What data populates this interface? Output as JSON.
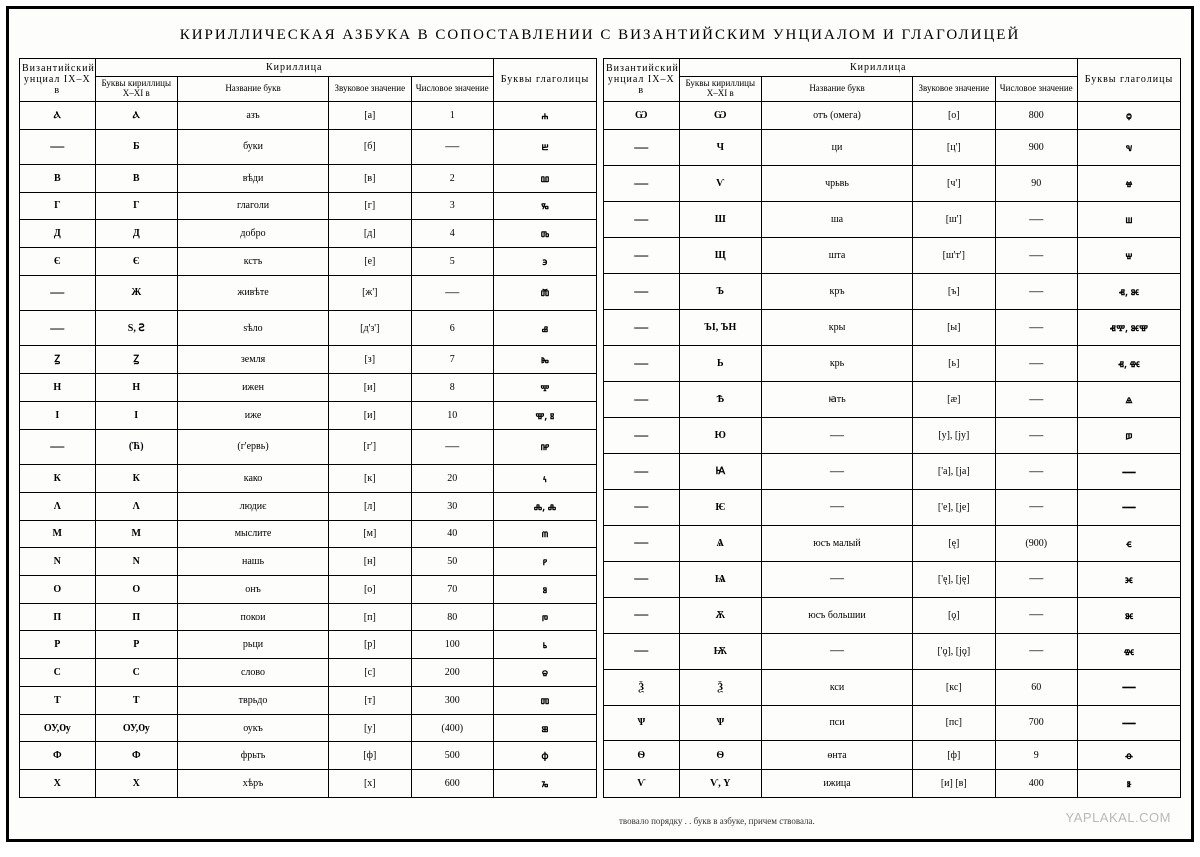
{
  "title": "КИРИЛЛИЧЕСКАЯ АЗБУКА В СОПОСТАВЛЕНИИ С ВИЗАНТИЙСКИМ УНЦИАЛОМ И ГЛАГОЛИЦЕЙ",
  "columns": {
    "byzantine": "Византийский унциал IX–X в",
    "cyrillic_group": "Кириллица",
    "cyr_letters": "Буквы кириллицы X–XI в",
    "letter_name": "Название букв",
    "phonetic": "Звуковое значение",
    "numeric": "Числовое значение",
    "glagolitic": "Буквы глаголицы"
  },
  "left_rows": [
    {
      "byz": "Ⲁ",
      "cyr": "Ⲁ",
      "name": "азъ",
      "phon": "[а]",
      "num": "1",
      "gl": "ⰰ"
    },
    {
      "byz": "—",
      "cyr": "Б",
      "name": "буки",
      "phon": "[б]",
      "num": "—",
      "gl": "ⰱ"
    },
    {
      "byz": "В",
      "cyr": "В",
      "name": "вѣди",
      "phon": "[в]",
      "num": "2",
      "gl": "ⰲ"
    },
    {
      "byz": "Г",
      "cyr": "Г",
      "name": "глаголи",
      "phon": "[г]",
      "num": "3",
      "gl": "ⰳ"
    },
    {
      "byz": "Д",
      "cyr": "Д",
      "name": "добро",
      "phon": "[д]",
      "num": "4",
      "gl": "ⰴ"
    },
    {
      "byz": "Є",
      "cyr": "Є",
      "name": "кстъ",
      "phon": "[е]",
      "num": "5",
      "gl": "ⰵ"
    },
    {
      "byz": "—",
      "cyr": "Ж",
      "name": "живѣте",
      "phon": "[ж']",
      "num": "—",
      "gl": "ⰶ"
    },
    {
      "byz": "—",
      "cyr": "Ѕ, Ꙅ",
      "name": "ѕѣло",
      "phon": "[д'з']",
      "num": "6",
      "gl": "ⰷ"
    },
    {
      "byz": "Ꙁ",
      "cyr": "Ꙁ",
      "name": "земля",
      "phon": "[з]",
      "num": "7",
      "gl": "ⰸ"
    },
    {
      "byz": "Н",
      "cyr": "Н",
      "name": "ижен",
      "phon": "[и]",
      "num": "8",
      "gl": "ⰹ"
    },
    {
      "byz": "І",
      "cyr": "І",
      "name": "иже",
      "phon": "[и]",
      "num": "10",
      "gl": "ⰺ, ⰻ"
    },
    {
      "byz": "—",
      "cyr": "(Ћ)",
      "name": "(г'ервь)",
      "phon": "[г']",
      "num": "—",
      "gl": "ⰼ"
    },
    {
      "byz": "К",
      "cyr": "К",
      "name": "како",
      "phon": "[к]",
      "num": "20",
      "gl": "ⰽ"
    },
    {
      "byz": "Λ",
      "cyr": "Λ",
      "name": "людиє",
      "phon": "[л]",
      "num": "30",
      "gl": "ⰾ, ⰾ"
    },
    {
      "byz": "М",
      "cyr": "М",
      "name": "мыслите",
      "phon": "[м]",
      "num": "40",
      "gl": "ⰿ"
    },
    {
      "byz": "N",
      "cyr": "N",
      "name": "нашь",
      "phon": "[н]",
      "num": "50",
      "gl": "ⱀ"
    },
    {
      "byz": "О",
      "cyr": "О",
      "name": "онъ",
      "phon": "[о]",
      "num": "70",
      "gl": "ⱁ"
    },
    {
      "byz": "П",
      "cyr": "П",
      "name": "покои",
      "phon": "[п]",
      "num": "80",
      "gl": "ⱂ"
    },
    {
      "byz": "Р",
      "cyr": "Р",
      "name": "рьци",
      "phon": "[р]",
      "num": "100",
      "gl": "ⱃ"
    },
    {
      "byz": "С",
      "cyr": "С",
      "name": "слово",
      "phon": "[с]",
      "num": "200",
      "gl": "ⱄ"
    },
    {
      "byz": "Т",
      "cyr": "Т",
      "name": "тврьдо",
      "phon": "[т]",
      "num": "300",
      "gl": "ⱅ"
    },
    {
      "byz": "ОУ,Ѹ",
      "cyr": "ОУ,Ѹ",
      "name": "оукъ",
      "phon": "[у]",
      "num": "(400)",
      "gl": "ⱆ"
    },
    {
      "byz": "Ф",
      "cyr": "Ф",
      "name": "фрьть",
      "phon": "[ф]",
      "num": "500",
      "gl": "ⱇ"
    },
    {
      "byz": "Х",
      "cyr": "Х",
      "name": "хѣръ",
      "phon": "[х]",
      "num": "600",
      "gl": "ⱈ"
    }
  ],
  "right_rows": [
    {
      "byz": "Ѡ",
      "cyr": "Ѡ",
      "name": "отъ (омега)",
      "phon": "[о]",
      "num": "800",
      "gl": "ⱉ"
    },
    {
      "byz": "—",
      "cyr": "Ч",
      "name": "ци",
      "phon": "[ц']",
      "num": "900",
      "gl": "ⱌ"
    },
    {
      "byz": "—",
      "cyr": "Ѵ",
      "name": "чрьвь",
      "phon": "[ч']",
      "num": "90",
      "gl": "ⱍ"
    },
    {
      "byz": "—",
      "cyr": "Ш",
      "name": "ша",
      "phon": "[ш']",
      "num": "—",
      "gl": "ⱎ"
    },
    {
      "byz": "—",
      "cyr": "Щ",
      "name": "шта",
      "phon": "[ш'т']",
      "num": "—",
      "gl": "ⱋ"
    },
    {
      "byz": "—",
      "cyr": "Ъ",
      "name": "кръ",
      "phon": "[ъ]",
      "num": "—",
      "gl": "ⱏ, ⱘ"
    },
    {
      "byz": "—",
      "cyr": "ЪІ, ЪН",
      "name": "кры",
      "phon": "[ы]",
      "num": "—",
      "gl": "ⱏⰹ, ⱘⰺ"
    },
    {
      "byz": "—",
      "cyr": "Ь",
      "name": "крь",
      "phon": "[ь]",
      "num": "—",
      "gl": "ⱐ, ⱙ"
    },
    {
      "byz": "—",
      "cyr": "Ѣ",
      "name": "ꙗть",
      "phon": "[æ]",
      "num": "—",
      "gl": "ⱑ"
    },
    {
      "byz": "—",
      "cyr": "Ю",
      "name": "—",
      "phon": "[у], [jу]",
      "num": "—",
      "gl": "ⱓ"
    },
    {
      "byz": "—",
      "cyr": "Ꙗ",
      "name": "—",
      "phon": "['а], [jа]",
      "num": "—",
      "gl": "—"
    },
    {
      "byz": "—",
      "cyr": "Ѥ",
      "name": "—",
      "phon": "['е], [jе]",
      "num": "—",
      "gl": "—"
    },
    {
      "byz": "—",
      "cyr": "Ѧ",
      "name": "юсъ малый",
      "phon": "[ę]",
      "num": "(900)",
      "gl": "ⱔ"
    },
    {
      "byz": "—",
      "cyr": "Ѩ",
      "name": "—",
      "phon": "['ę], [ję]",
      "num": "—",
      "gl": "ⱗ"
    },
    {
      "byz": "—",
      "cyr": "Ѫ",
      "name": "юсъ большии",
      "phon": "[ǫ]",
      "num": "—",
      "gl": "ⱘ"
    },
    {
      "byz": "—",
      "cyr": "Ѭ",
      "name": "—",
      "phon": "['ǫ], [jǫ]",
      "num": "—",
      "gl": "ⱙ"
    },
    {
      "byz": "Ѯ",
      "cyr": "Ѯ",
      "name": "кси",
      "phon": "[кс]",
      "num": "60",
      "gl": "—"
    },
    {
      "byz": "Ѱ",
      "cyr": "Ѱ",
      "name": "пси",
      "phon": "[пс]",
      "num": "700",
      "gl": "—"
    },
    {
      "byz": "Ѳ",
      "cyr": "Ѳ",
      "name": "өнта",
      "phon": "[ф]",
      "num": "9",
      "gl": "ⱚ"
    },
    {
      "byz": "Ѵ",
      "cyr": "Ѵ, Ү",
      "name": "ижица",
      "phon": "[и] [в]",
      "num": "400",
      "gl": "ⱛ"
    }
  ],
  "footnote": "твовало порядку . . букв в азбуке, причем ствовала.",
  "watermark": "YAPLAKAL.COM",
  "style": {
    "page_bg": "#fdfdfc",
    "border_color": "#000000",
    "title_fontsize": 15,
    "header_fontsize": 9,
    "glyph_fontsize": 20,
    "body_fontsize": 12,
    "watermark_color": "#b9b9b9"
  }
}
